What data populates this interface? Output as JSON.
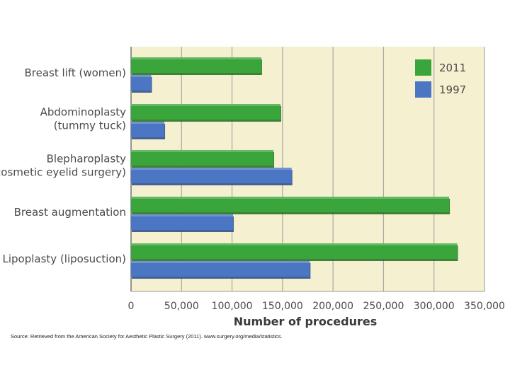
{
  "chart_data": {
    "type": "bar",
    "orientation": "horizontal",
    "categories": [
      [
        "Breast lift (women)"
      ],
      [
        "Abdominoplasty",
        "(tummy tuck)"
      ],
      [
        "Blepharoplasty",
        "(cosmetic eyelid surgery)"
      ],
      [
        "Breast augmentation"
      ],
      [
        "Lipoplasty (liposuction)"
      ]
    ],
    "series": [
      {
        "name": "2011",
        "color": "#3aa53a",
        "values": [
          129000,
          148000,
          141000,
          315000,
          323000
        ]
      },
      {
        "name": "1997",
        "color": "#4a76c4",
        "values": [
          20000,
          33000,
          159000,
          101000,
          177000
        ]
      }
    ],
    "xlabel": "Number of procedures",
    "xlim": [
      0,
      350000
    ],
    "xticks": [
      0,
      50000,
      100000,
      150000,
      200000,
      250000,
      300000,
      350000
    ],
    "xtick_labels": [
      "0",
      "50,000",
      "100,000",
      "150,000",
      "200,000",
      "250,000",
      "300,000",
      "350,000"
    ],
    "grid": true,
    "legend_position": "top-right",
    "plot_background": "#f5f0cf"
  },
  "source_text": "Source: Retrieved from the American Society for Aesthetic Plastic Surgery (2011). www.surgery.org/media/statistics."
}
